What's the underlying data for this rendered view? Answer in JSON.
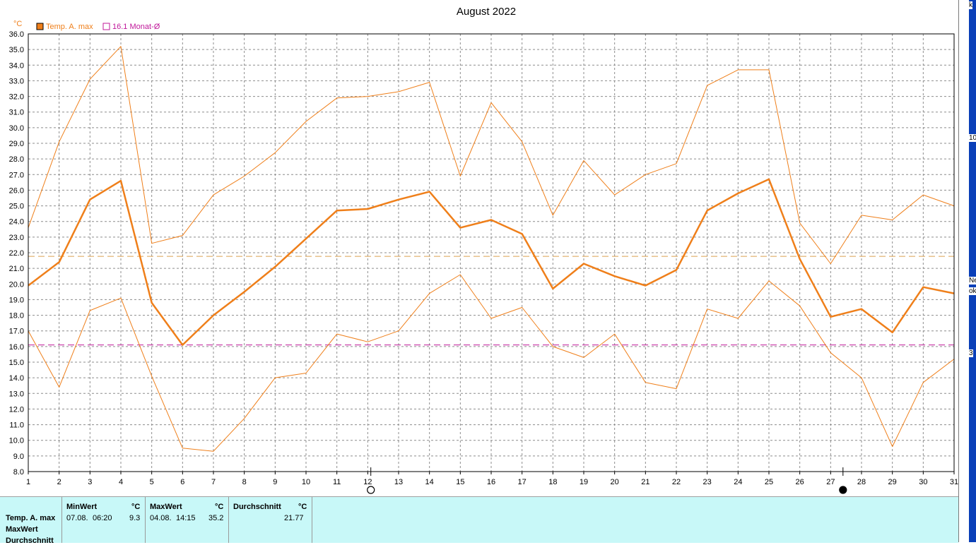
{
  "title": "August 2022",
  "y_unit": "°C",
  "legend": [
    {
      "label": "Temp. A. max",
      "color": "#ef7f1a",
      "filled": true
    },
    {
      "label": "16.1 Monat-Ø",
      "color": "#c0189a",
      "filled": false
    }
  ],
  "chart_data": {
    "type": "line",
    "title": "August 2022",
    "xlabel": "",
    "ylabel": "°C",
    "ylim": [
      8.0,
      36.0
    ],
    "grid": true,
    "legend_position": "top-left",
    "x": [
      1,
      2,
      3,
      4,
      5,
      6,
      7,
      8,
      9,
      10,
      11,
      12,
      13,
      14,
      15,
      16,
      17,
      18,
      19,
      20,
      21,
      22,
      23,
      24,
      25,
      26,
      27,
      28,
      29,
      30,
      31
    ],
    "y_ticks": [
      "8.0",
      "9.0",
      "10.0",
      "11.0",
      "12.0",
      "13.0",
      "14.0",
      "15.0",
      "16.0",
      "17.0",
      "18.0",
      "19.0",
      "20.0",
      "21.0",
      "22.0",
      "23.0",
      "24.0",
      "25.0",
      "26.0",
      "27.0",
      "28.0",
      "29.0",
      "30.0",
      "31.0",
      "32.0",
      "33.0",
      "34.0",
      "35.0",
      "36.0"
    ],
    "series": [
      {
        "name": "Temp. A. max",
        "role": "main",
        "values": [
          19.9,
          21.4,
          25.4,
          26.6,
          18.8,
          16.1,
          18.0,
          19.5,
          21.1,
          22.9,
          24.7,
          24.8,
          25.4,
          25.9,
          23.6,
          24.1,
          23.2,
          19.7,
          21.3,
          20.5,
          19.9,
          20.9,
          24.7,
          25.8,
          26.7,
          21.6,
          17.9,
          18.4,
          16.9,
          19.8,
          19.4
        ]
      },
      {
        "role": "upper",
        "values": [
          23.6,
          29.1,
          33.1,
          35.2,
          22.6,
          23.1,
          25.7,
          26.9,
          28.4,
          30.4,
          31.9,
          32.0,
          32.3,
          32.9,
          26.9,
          31.6,
          29.1,
          24.4,
          27.9,
          25.7,
          27.0,
          27.7,
          32.7,
          33.7,
          33.7,
          23.9,
          21.3,
          24.4,
          24.1,
          25.7,
          25.0
        ]
      },
      {
        "role": "lower",
        "values": [
          17.0,
          13.4,
          18.3,
          19.1,
          14.1,
          9.5,
          9.3,
          11.4,
          14.0,
          14.3,
          16.8,
          16.3,
          17.0,
          19.4,
          20.6,
          17.8,
          18.5,
          16.0,
          15.3,
          16.8,
          13.7,
          13.3,
          18.4,
          17.8,
          20.2,
          18.6,
          15.6,
          14.0,
          9.6,
          13.7,
          15.2
        ]
      }
    ],
    "reference_lines": [
      {
        "value": 21.77,
        "color": "#d9a050",
        "style": "dashed"
      },
      {
        "value": 16.1,
        "color": "#c0189a",
        "style": "dashed"
      }
    ],
    "moon_markers": [
      {
        "x": 12.1,
        "phase": "full-moon"
      },
      {
        "x": 27.4,
        "phase": "new-moon"
      }
    ]
  },
  "stats": {
    "row_labels": [
      "Temp. A. max",
      "MaxWert",
      "Durchschnitt"
    ],
    "min": {
      "header": "MinWert",
      "unit": "°C",
      "date": "07.08.",
      "time": "06:20",
      "value": "9.3"
    },
    "max": {
      "header": "MaxWert",
      "unit": "°C",
      "date": "04.08.",
      "time": "14:15",
      "value": "35.2"
    },
    "avg": {
      "header": "Durchschnitt",
      "unit": "°C",
      "value": "21.77"
    }
  },
  "side_fragments": [
    "k",
    "10",
    "Ne",
    "ok",
    "3"
  ]
}
